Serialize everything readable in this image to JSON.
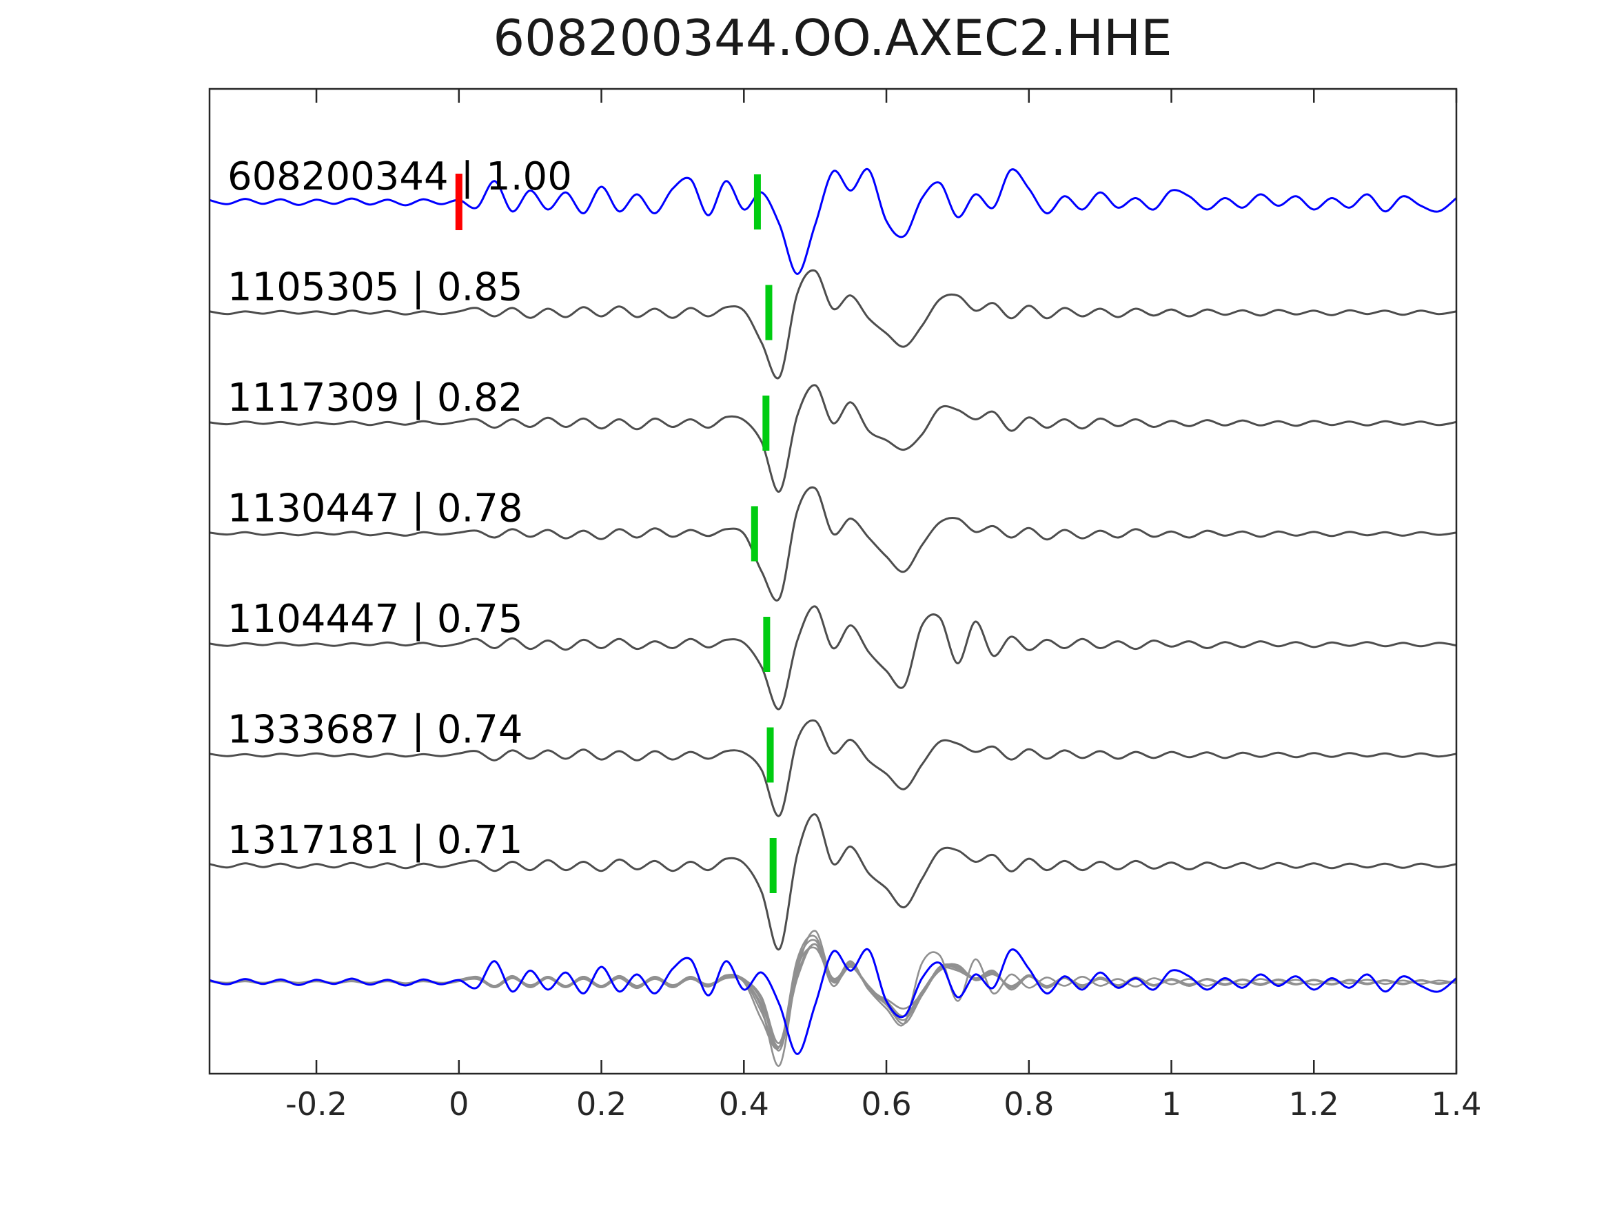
{
  "chart_data": {
    "type": "line",
    "title": "608200344.OO.AXEC2.HHE",
    "xlabel": "",
    "ylabel": "",
    "xlim": [
      -0.35,
      1.4
    ],
    "x_ticks": [
      -0.2,
      0,
      0.2,
      0.4,
      0.6,
      0.8,
      1,
      1.2,
      1.4
    ],
    "x_tick_labels": [
      "-0.2",
      "0",
      "0.2",
      "0.4",
      "0.6",
      "0.8",
      "1",
      "1.2",
      "1.4"
    ],
    "grid": false,
    "legend_position": "none",
    "sample_x_start": -0.35,
    "sample_x_step": 0.025,
    "origin_marker": {
      "trace_index": 0,
      "x": 0,
      "color": "#ff0000"
    },
    "pick_marker_color": "#00cc11",
    "colors": {
      "reference_blue": "#0000ff",
      "trace_gray": "#4d4d4d",
      "overlay_gray": "#909090",
      "axis": "#262626",
      "tick_label": "#262626",
      "label_text": "#000000"
    },
    "traces": [
      {
        "label": "608200344 | 1.00",
        "id": "608200344",
        "correlation": 1.0,
        "color_key": "reference_blue",
        "pick_x": 0.419,
        "values": [
          0.05,
          -0.06,
          0.08,
          -0.05,
          0.07,
          -0.08,
          0.06,
          -0.05,
          0.09,
          -0.07,
          0.06,
          -0.09,
          0.07,
          -0.06,
          0.05,
          -0.15,
          0.55,
          -0.25,
          0.3,
          -0.2,
          0.25,
          -0.3,
          0.4,
          -0.25,
          0.2,
          -0.3,
          0.35,
          0.6,
          -0.35,
          0.55,
          -0.2,
          0.25,
          -0.6,
          -1.9,
          -0.6,
          0.8,
          0.3,
          0.85,
          -0.5,
          -0.9,
          0.1,
          0.5,
          -0.4,
          0.2,
          -0.15,
          0.85,
          0.35,
          -0.3,
          0.15,
          -0.2,
          0.25,
          -0.15,
          0.1,
          -0.2,
          0.3,
          0.15,
          -0.2,
          0.1,
          -0.15,
          0.2,
          -0.1,
          0.15,
          -0.2,
          0.1,
          -0.15,
          0.2,
          -0.25,
          0.15,
          -0.1,
          -0.25,
          0.1
        ]
      },
      {
        "label": "1105305 | 0.85",
        "id": "1105305",
        "correlation": 0.85,
        "color_key": "trace_gray",
        "pick_x": 0.435,
        "values": [
          0.03,
          -0.04,
          0.03,
          -0.03,
          0.04,
          -0.03,
          0.03,
          -0.04,
          0.05,
          -0.03,
          0.04,
          -0.05,
          0.03,
          -0.04,
          0.03,
          0.12,
          -0.1,
          0.12,
          -0.14,
          0.1,
          -0.12,
          0.14,
          -0.1,
          0.16,
          -0.12,
          0.1,
          -0.14,
          0.12,
          -0.1,
          0.14,
          0.05,
          -0.8,
          -1.7,
          0.5,
          1.1,
          0.1,
          0.45,
          -0.15,
          -0.55,
          -0.9,
          -0.35,
          0.35,
          0.45,
          0.05,
          0.25,
          -0.15,
          0.18,
          -0.15,
          0.12,
          -0.1,
          0.1,
          -0.12,
          0.1,
          -0.08,
          0.08,
          -0.1,
          0.08,
          -0.06,
          0.06,
          -0.08,
          0.07,
          -0.05,
          0.05,
          -0.07,
          0.06,
          -0.04,
          0.05,
          -0.06,
          0.05,
          -0.04,
          0.03
        ]
      },
      {
        "label": "1117309 | 0.82",
        "id": "1117309",
        "correlation": 0.82,
        "color_key": "trace_gray",
        "pick_x": 0.431,
        "values": [
          0.02,
          -0.03,
          0.04,
          -0.02,
          0.03,
          -0.04,
          0.02,
          -0.03,
          0.04,
          -0.05,
          0.03,
          -0.04,
          0.05,
          -0.03,
          0.04,
          0.1,
          -0.12,
          0.1,
          -0.1,
          0.14,
          -0.1,
          0.12,
          -0.14,
          0.1,
          -0.16,
          0.12,
          -0.1,
          0.1,
          -0.12,
          0.16,
          0.08,
          -0.5,
          -1.8,
          0.2,
          1.0,
          0.0,
          0.55,
          -0.2,
          -0.45,
          -0.7,
          -0.3,
          0.4,
          0.35,
          0.1,
          0.3,
          -0.2,
          0.15,
          -0.12,
          0.1,
          -0.14,
          0.12,
          -0.08,
          0.1,
          -0.1,
          0.06,
          -0.08,
          0.08,
          -0.06,
          0.07,
          -0.06,
          0.05,
          -0.07,
          0.06,
          -0.05,
          0.04,
          -0.06,
          0.05,
          -0.04,
          0.04,
          -0.05,
          0.03
        ]
      },
      {
        "label": "1130447 | 0.78",
        "id": "1130447",
        "correlation": 0.78,
        "color_key": "trace_gray",
        "pick_x": 0.415,
        "values": [
          0.03,
          -0.02,
          0.04,
          -0.03,
          0.02,
          -0.04,
          0.03,
          -0.02,
          0.05,
          -0.04,
          0.02,
          -0.05,
          0.04,
          -0.02,
          0.03,
          0.08,
          -0.1,
          0.12,
          -0.08,
          0.1,
          -0.12,
          0.08,
          -0.14,
          0.12,
          -0.1,
          0.14,
          -0.08,
          0.1,
          -0.06,
          0.12,
          0.0,
          -1.0,
          -1.7,
          0.6,
          1.2,
          0.0,
          0.4,
          -0.1,
          -0.6,
          -1.0,
          -0.3,
          0.3,
          0.4,
          0.05,
          0.2,
          -0.1,
          0.15,
          -0.15,
          0.1,
          -0.12,
          0.08,
          -0.1,
          0.12,
          -0.08,
          0.06,
          -0.1,
          0.08,
          -0.05,
          0.06,
          -0.08,
          0.06,
          -0.05,
          0.05,
          -0.06,
          0.05,
          -0.04,
          0.04,
          -0.05,
          0.04,
          -0.03,
          0.03
        ]
      },
      {
        "label": "1104447 | 0.75",
        "id": "1104447",
        "correlation": 0.75,
        "color_key": "trace_gray",
        "pick_x": 0.432,
        "values": [
          0.02,
          -0.04,
          0.03,
          -0.02,
          0.04,
          -0.03,
          0.02,
          -0.04,
          0.03,
          -0.02,
          0.05,
          -0.03,
          0.04,
          -0.05,
          0.02,
          0.14,
          -0.1,
          0.16,
          -0.12,
          0.1,
          -0.14,
          0.12,
          -0.1,
          0.14,
          -0.12,
          0.08,
          -0.1,
          0.14,
          -0.08,
          0.12,
          0.04,
          -0.6,
          -1.7,
          0.1,
          1.0,
          -0.1,
          0.5,
          -0.2,
          -0.7,
          -1.1,
          0.5,
          0.7,
          -0.5,
          0.6,
          -0.3,
          0.2,
          -0.15,
          0.12,
          -0.1,
          0.14,
          -0.1,
          0.08,
          -0.12,
          0.1,
          -0.06,
          0.08,
          -0.1,
          0.06,
          -0.07,
          0.08,
          -0.05,
          0.06,
          -0.07,
          0.05,
          -0.04,
          0.06,
          -0.05,
          0.04,
          -0.05,
          0.04,
          -0.03
        ]
      },
      {
        "label": "1333687 | 0.74",
        "id": "1333687",
        "correlation": 0.74,
        "color_key": "trace_gray",
        "pick_x": 0.437,
        "values": [
          0.03,
          -0.03,
          0.02,
          -0.04,
          0.03,
          -0.02,
          0.04,
          -0.03,
          0.02,
          -0.05,
          0.03,
          -0.04,
          0.02,
          -0.03,
          0.04,
          0.1,
          -0.14,
          0.12,
          -0.1,
          0.12,
          -0.1,
          0.14,
          -0.12,
          0.1,
          -0.14,
          0.1,
          -0.12,
          0.08,
          -0.1,
          0.1,
          0.06,
          -0.4,
          -1.6,
          0.4,
          0.9,
          0.05,
          0.4,
          -0.15,
          -0.5,
          -0.9,
          -0.25,
          0.35,
          0.3,
          0.08,
          0.22,
          -0.12,
          0.15,
          -0.1,
          0.12,
          -0.08,
          0.1,
          -0.1,
          0.08,
          -0.08,
          0.08,
          -0.06,
          0.07,
          -0.08,
          0.06,
          -0.05,
          0.06,
          -0.06,
          0.05,
          -0.05,
          0.05,
          -0.04,
          0.04,
          -0.05,
          0.04,
          -0.04,
          0.03
        ]
      },
      {
        "label": "1317181 | 0.71",
        "id": "1317181",
        "correlation": 0.71,
        "color_key": "trace_gray",
        "pick_x": 0.441,
        "values": [
          0.04,
          -0.05,
          0.06,
          -0.04,
          0.05,
          -0.06,
          0.04,
          -0.05,
          0.07,
          -0.05,
          0.06,
          -0.07,
          0.05,
          -0.04,
          0.06,
          0.12,
          -0.14,
          0.1,
          -0.12,
          0.14,
          -0.12,
          0.1,
          -0.14,
          0.16,
          -0.1,
          0.12,
          -0.14,
          0.1,
          -0.12,
          0.18,
          0.06,
          -0.7,
          -2.2,
          0.3,
          1.35,
          0.05,
          0.5,
          -0.2,
          -0.6,
          -1.1,
          -0.35,
          0.4,
          0.4,
          0.1,
          0.28,
          -0.15,
          0.18,
          -0.12,
          0.12,
          -0.12,
          0.1,
          -0.1,
          0.12,
          -0.08,
          0.08,
          -0.1,
          0.08,
          -0.07,
          0.07,
          -0.08,
          0.07,
          -0.06,
          0.06,
          -0.07,
          0.05,
          -0.05,
          0.05,
          -0.06,
          0.05,
          -0.04,
          0.04
        ]
      }
    ],
    "overlay_row": {
      "description": "all traces overlaid on common baseline",
      "has_markers": false
    }
  }
}
